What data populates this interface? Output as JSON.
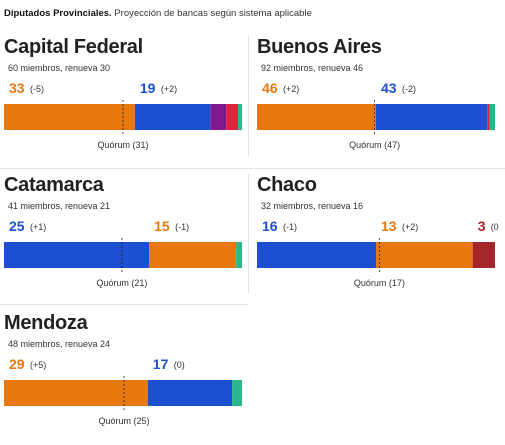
{
  "header": {
    "title": "Diputados Provinciales.",
    "subtitle": "Proyección de bancas según sistema aplicable"
  },
  "colors": {
    "orange": "#e8770e",
    "blue": "#1d4fd1",
    "purple": "#7e1a8e",
    "red": "#e0243f",
    "teal": "#2bb58e",
    "darkred": "#a5262a"
  },
  "chart_data": [
    {
      "type": "bar",
      "title": "Capital Federal",
      "subtitle": "60 miembros, renueva 30",
      "total": 60,
      "quorum": 31,
      "quorum_label": "Quórum (31)",
      "segments": [
        {
          "value": 33,
          "color": "#e8770e",
          "label": "33",
          "change": "(-5)"
        },
        {
          "value": 19,
          "color": "#1d4fd1",
          "label": "19",
          "change": "(+2)"
        },
        {
          "value": 4,
          "color": "#7e1a8e"
        },
        {
          "value": 3,
          "color": "#e0243f"
        },
        {
          "value": 1,
          "color": "#2bb58e"
        }
      ]
    },
    {
      "type": "bar",
      "title": "Buenos Aires",
      "subtitle": "92 miembros, renueva 46",
      "total": 92,
      "quorum": 47,
      "quorum_label": "Quórum (47)",
      "segments": [
        {
          "value": 46,
          "color": "#e8770e",
          "label": "46",
          "change": "(+2)"
        },
        {
          "value": 43,
          "color": "#1d4fd1",
          "label": "43",
          "change": "(-2)"
        },
        {
          "value": 1,
          "color": "#e0243f"
        },
        {
          "value": 2,
          "color": "#2bb58e"
        }
      ]
    },
    {
      "type": "bar",
      "title": "Catamarca",
      "subtitle": "41 miembros, renueva 21",
      "total": 41,
      "quorum": 21,
      "quorum_label": "Quórum (21)",
      "segments": [
        {
          "value": 25,
          "color": "#1d4fd1",
          "label": "25",
          "change": "(+1)"
        },
        {
          "value": 15,
          "color": "#e8770e",
          "label": "15",
          "change": "(-1)"
        },
        {
          "value": 1,
          "color": "#2bb58e"
        }
      ]
    },
    {
      "type": "bar",
      "title": "Chaco",
      "subtitle": "32 miembros, renueva 16",
      "total": 32,
      "quorum": 17,
      "quorum_label": "Quórum (17)",
      "segments": [
        {
          "value": 16,
          "color": "#1d4fd1",
          "label": "16",
          "change": "(-1)"
        },
        {
          "value": 13,
          "color": "#e8770e",
          "label": "13",
          "change": "(+2)"
        },
        {
          "value": 3,
          "color": "#a5262a",
          "label": "3",
          "change": "(0"
        }
      ]
    },
    {
      "type": "bar",
      "title": "Mendoza",
      "subtitle": "48 miembros, renueva 24",
      "total": 48,
      "quorum": 25,
      "quorum_label": "Quórum (25)",
      "segments": [
        {
          "value": 29,
          "color": "#e8770e",
          "label": "29",
          "change": "(+5)"
        },
        {
          "value": 17,
          "color": "#1d4fd1",
          "label": "17",
          "change": "(0)"
        },
        {
          "value": 2,
          "color": "#2bb58e"
        }
      ]
    }
  ]
}
